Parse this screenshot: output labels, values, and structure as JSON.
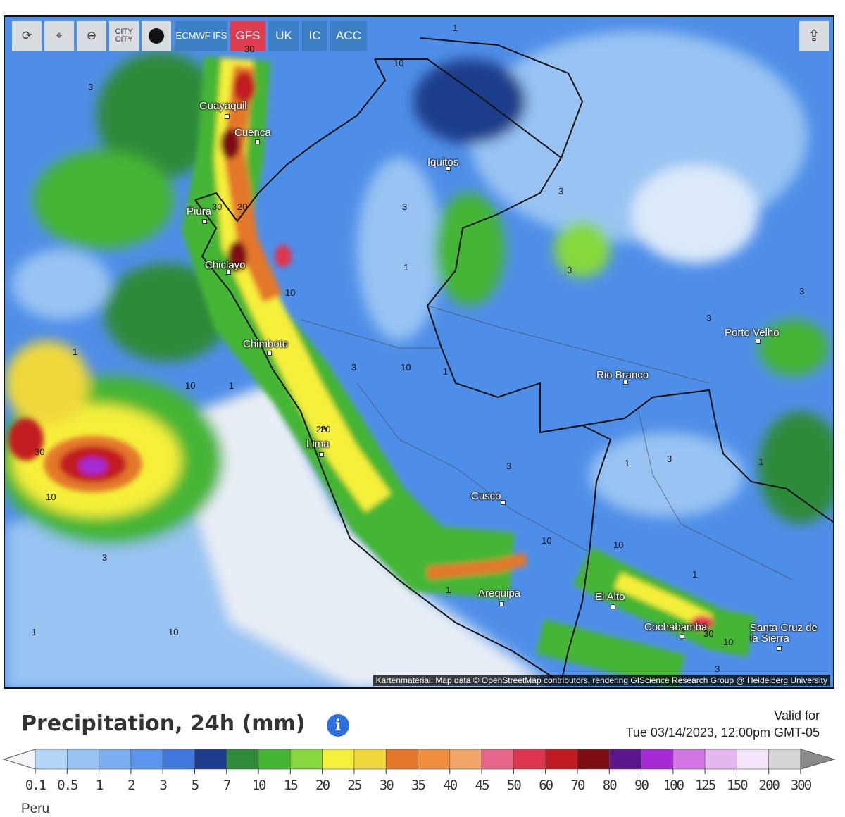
{
  "toolbar": {
    "city_toggle": [
      "CITY",
      "CITY"
    ],
    "models": [
      "ECMWF IFS",
      "GFS",
      "UK",
      "IC",
      "ACC"
    ]
  },
  "map": {
    "cities": [
      "Guayaquil",
      "Cuenca",
      "Piura",
      "Chiclayo",
      "Chimbote",
      "Lima",
      "Iquitos",
      "Porto Velho",
      "Rio Branco",
      "Cusco",
      "Arequipa",
      "El Alto",
      "Cochabamba",
      "Santa Cruz de la Sierra"
    ],
    "contour_labels": [
      3,
      1,
      10,
      30,
      30,
      20,
      3,
      1,
      3,
      3,
      10,
      3,
      3,
      1,
      10,
      1,
      1,
      10,
      20,
      30,
      20,
      10,
      3,
      1,
      3,
      1,
      3,
      10,
      10,
      1,
      1,
      10,
      30,
      10,
      3,
      3,
      1
    ],
    "attribution": "Kartenmaterial: Map data © OpenStreetMap contributors, rendering GIScience Research Group @ Heidelberg University"
  },
  "title": "Precipitation, 24h (mm)",
  "valid_label": "Valid for",
  "valid_time": "Tue 03/14/2023, 12:00pm GMT-05",
  "legend": {
    "ticks": [
      0.1,
      0.5,
      1,
      2,
      3,
      5,
      7,
      10,
      15,
      20,
      25,
      30,
      35,
      40,
      45,
      50,
      60,
      70,
      80,
      90,
      100,
      125,
      150,
      200,
      300
    ],
    "colors": [
      "#f2f4f7",
      "#b3d5f7",
      "#98c3f3",
      "#7aaef0",
      "#5b95ea",
      "#3f78dc",
      "#1c3c8a",
      "#2f8a3a",
      "#45b536",
      "#86d83e",
      "#f6f03a",
      "#f0d83a",
      "#e4772a",
      "#ef8e3e",
      "#f2a56b",
      "#e8668a",
      "#de3550",
      "#c21a22",
      "#7e0d14",
      "#5c168c",
      "#a62bd6",
      "#d276e6",
      "#e6b6f0",
      "#f4e6f8",
      "#d6d6d6",
      "#8a8a8a"
    ]
  },
  "region": "Peru"
}
